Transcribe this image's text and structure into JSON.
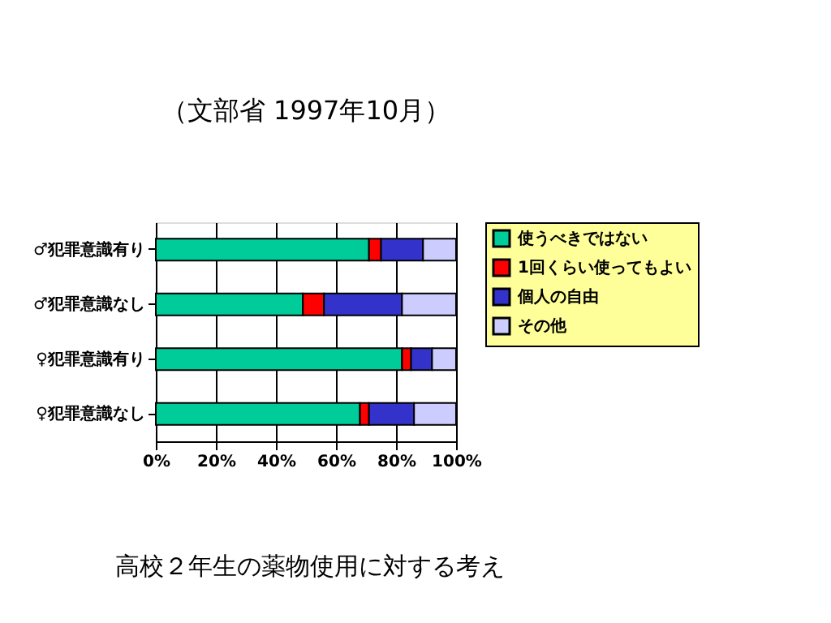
{
  "chart_data": {
    "type": "bar",
    "orientation": "horizontal",
    "stacked": true,
    "title": "（文部省 1997年10月）",
    "annotations": [
      "高校２年生の薬物使用に対する考え"
    ],
    "categories": [
      "♂犯罪意識有り",
      "♂犯罪意識なし",
      "♀犯罪意識有り",
      "♀犯罪意識なし"
    ],
    "series": [
      {
        "name": "使うべきではない",
        "color": "#00cc99",
        "values": [
          71,
          49,
          82,
          68
        ]
      },
      {
        "name": "1回くらい使ってもよい",
        "color": "#ff0000",
        "values": [
          4,
          7,
          3,
          3
        ]
      },
      {
        "name": "個人の自由",
        "color": "#3333cc",
        "values": [
          14,
          26,
          7,
          15
        ]
      },
      {
        "name": "その他",
        "color": "#ccccff",
        "values": [
          11,
          18,
          8,
          14
        ]
      }
    ],
    "xlim": [
      0,
      100
    ],
    "xticks": [
      {
        "value": 0,
        "label": "0%"
      },
      {
        "value": 20,
        "label": "20%"
      },
      {
        "value": 40,
        "label": "40%"
      },
      {
        "value": 60,
        "label": "60%"
      },
      {
        "value": 80,
        "label": "80%"
      },
      {
        "value": 100,
        "label": "100%"
      }
    ],
    "grid": "x",
    "legend": "right"
  }
}
